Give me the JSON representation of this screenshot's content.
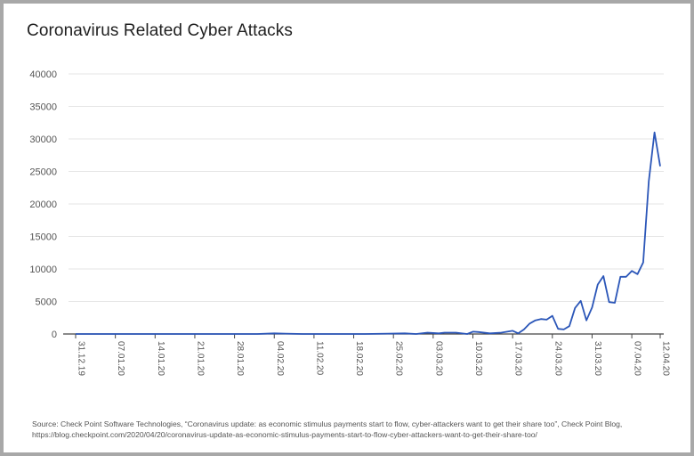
{
  "title": "Coronavirus Related Cyber Attacks",
  "source": "Source: Check Point Software Technologies, “Coronavirus update: as economic stimulus payments start to flow, cyber-attackers want to get their share too”, Check Point Blog, https://blog.checkpoint.com/2020/04/20/coronavirus-update-as-economic-stimulus-payments-start-to-flow-cyber-attackers-want-to-get-their-share-too/",
  "colors": {
    "line": "#2b56b8",
    "grid": "#e6e6e6",
    "axis": "#444444"
  },
  "chart_data": {
    "type": "line",
    "title": "Coronavirus Related Cyber Attacks",
    "xlabel": "",
    "ylabel": "",
    "ylim": [
      0,
      40000
    ],
    "yticks": [
      0,
      5000,
      10000,
      15000,
      20000,
      25000,
      30000,
      35000,
      40000
    ],
    "xlim": [
      "31.12.19",
      "12.04.20"
    ],
    "xticks": [
      "31.12.19",
      "07.01.20",
      "14.01.20",
      "21.01.20",
      "28.01.20",
      "04.02.20",
      "11.02.20",
      "18.02.20",
      "25.02.20",
      "03.03.20",
      "10.03.20",
      "17.03.20",
      "24.03.20",
      "31.03.20",
      "07.04.20",
      "12.04.20"
    ],
    "grid": true,
    "legend": "none",
    "series": [
      {
        "x": [
          "31.12.19",
          "04.01.20",
          "08.01.20",
          "12.01.20",
          "16.01.20",
          "20.01.20",
          "24.01.20",
          "28.01.20",
          "01.02.20",
          "04.02.20",
          "06.02.20",
          "09.02.20",
          "12.02.20",
          "16.02.20",
          "20.02.20",
          "24.02.20",
          "27.02.20",
          "29.02.20",
          "02.03.20",
          "04.03.20",
          "05.03.20",
          "07.03.20",
          "09.03.20",
          "10.03.20",
          "11.03.20",
          "13.03.20",
          "15.03.20",
          "17.03.20",
          "18.03.20",
          "19.03.20",
          "20.03.20",
          "21.03.20",
          "22.03.20",
          "23.03.20",
          "24.03.20",
          "25.03.20",
          "26.03.20",
          "27.03.20",
          "28.03.20",
          "29.03.20",
          "30.03.20",
          "31.03.20",
          "01.04.20",
          "02.04.20",
          "03.04.20",
          "04.04.20",
          "05.04.20",
          "06.04.20",
          "07.04.20",
          "08.04.20",
          "09.04.20",
          "10.04.20",
          "11.04.20",
          "12.04.20"
        ],
        "values": [
          0,
          0,
          0,
          0,
          0,
          0,
          0,
          0,
          0,
          100,
          50,
          0,
          0,
          0,
          0,
          50,
          100,
          0,
          200,
          100,
          200,
          200,
          0,
          350,
          300,
          100,
          200,
          500,
          100,
          700,
          1600,
          2100,
          2300,
          2200,
          2800,
          800,
          700,
          1200,
          4000,
          5100,
          2100,
          4100,
          7600,
          8900,
          4900,
          4800,
          8800,
          8800,
          9700,
          9200,
          11000,
          23500,
          31000,
          25800
        ]
      }
    ]
  }
}
